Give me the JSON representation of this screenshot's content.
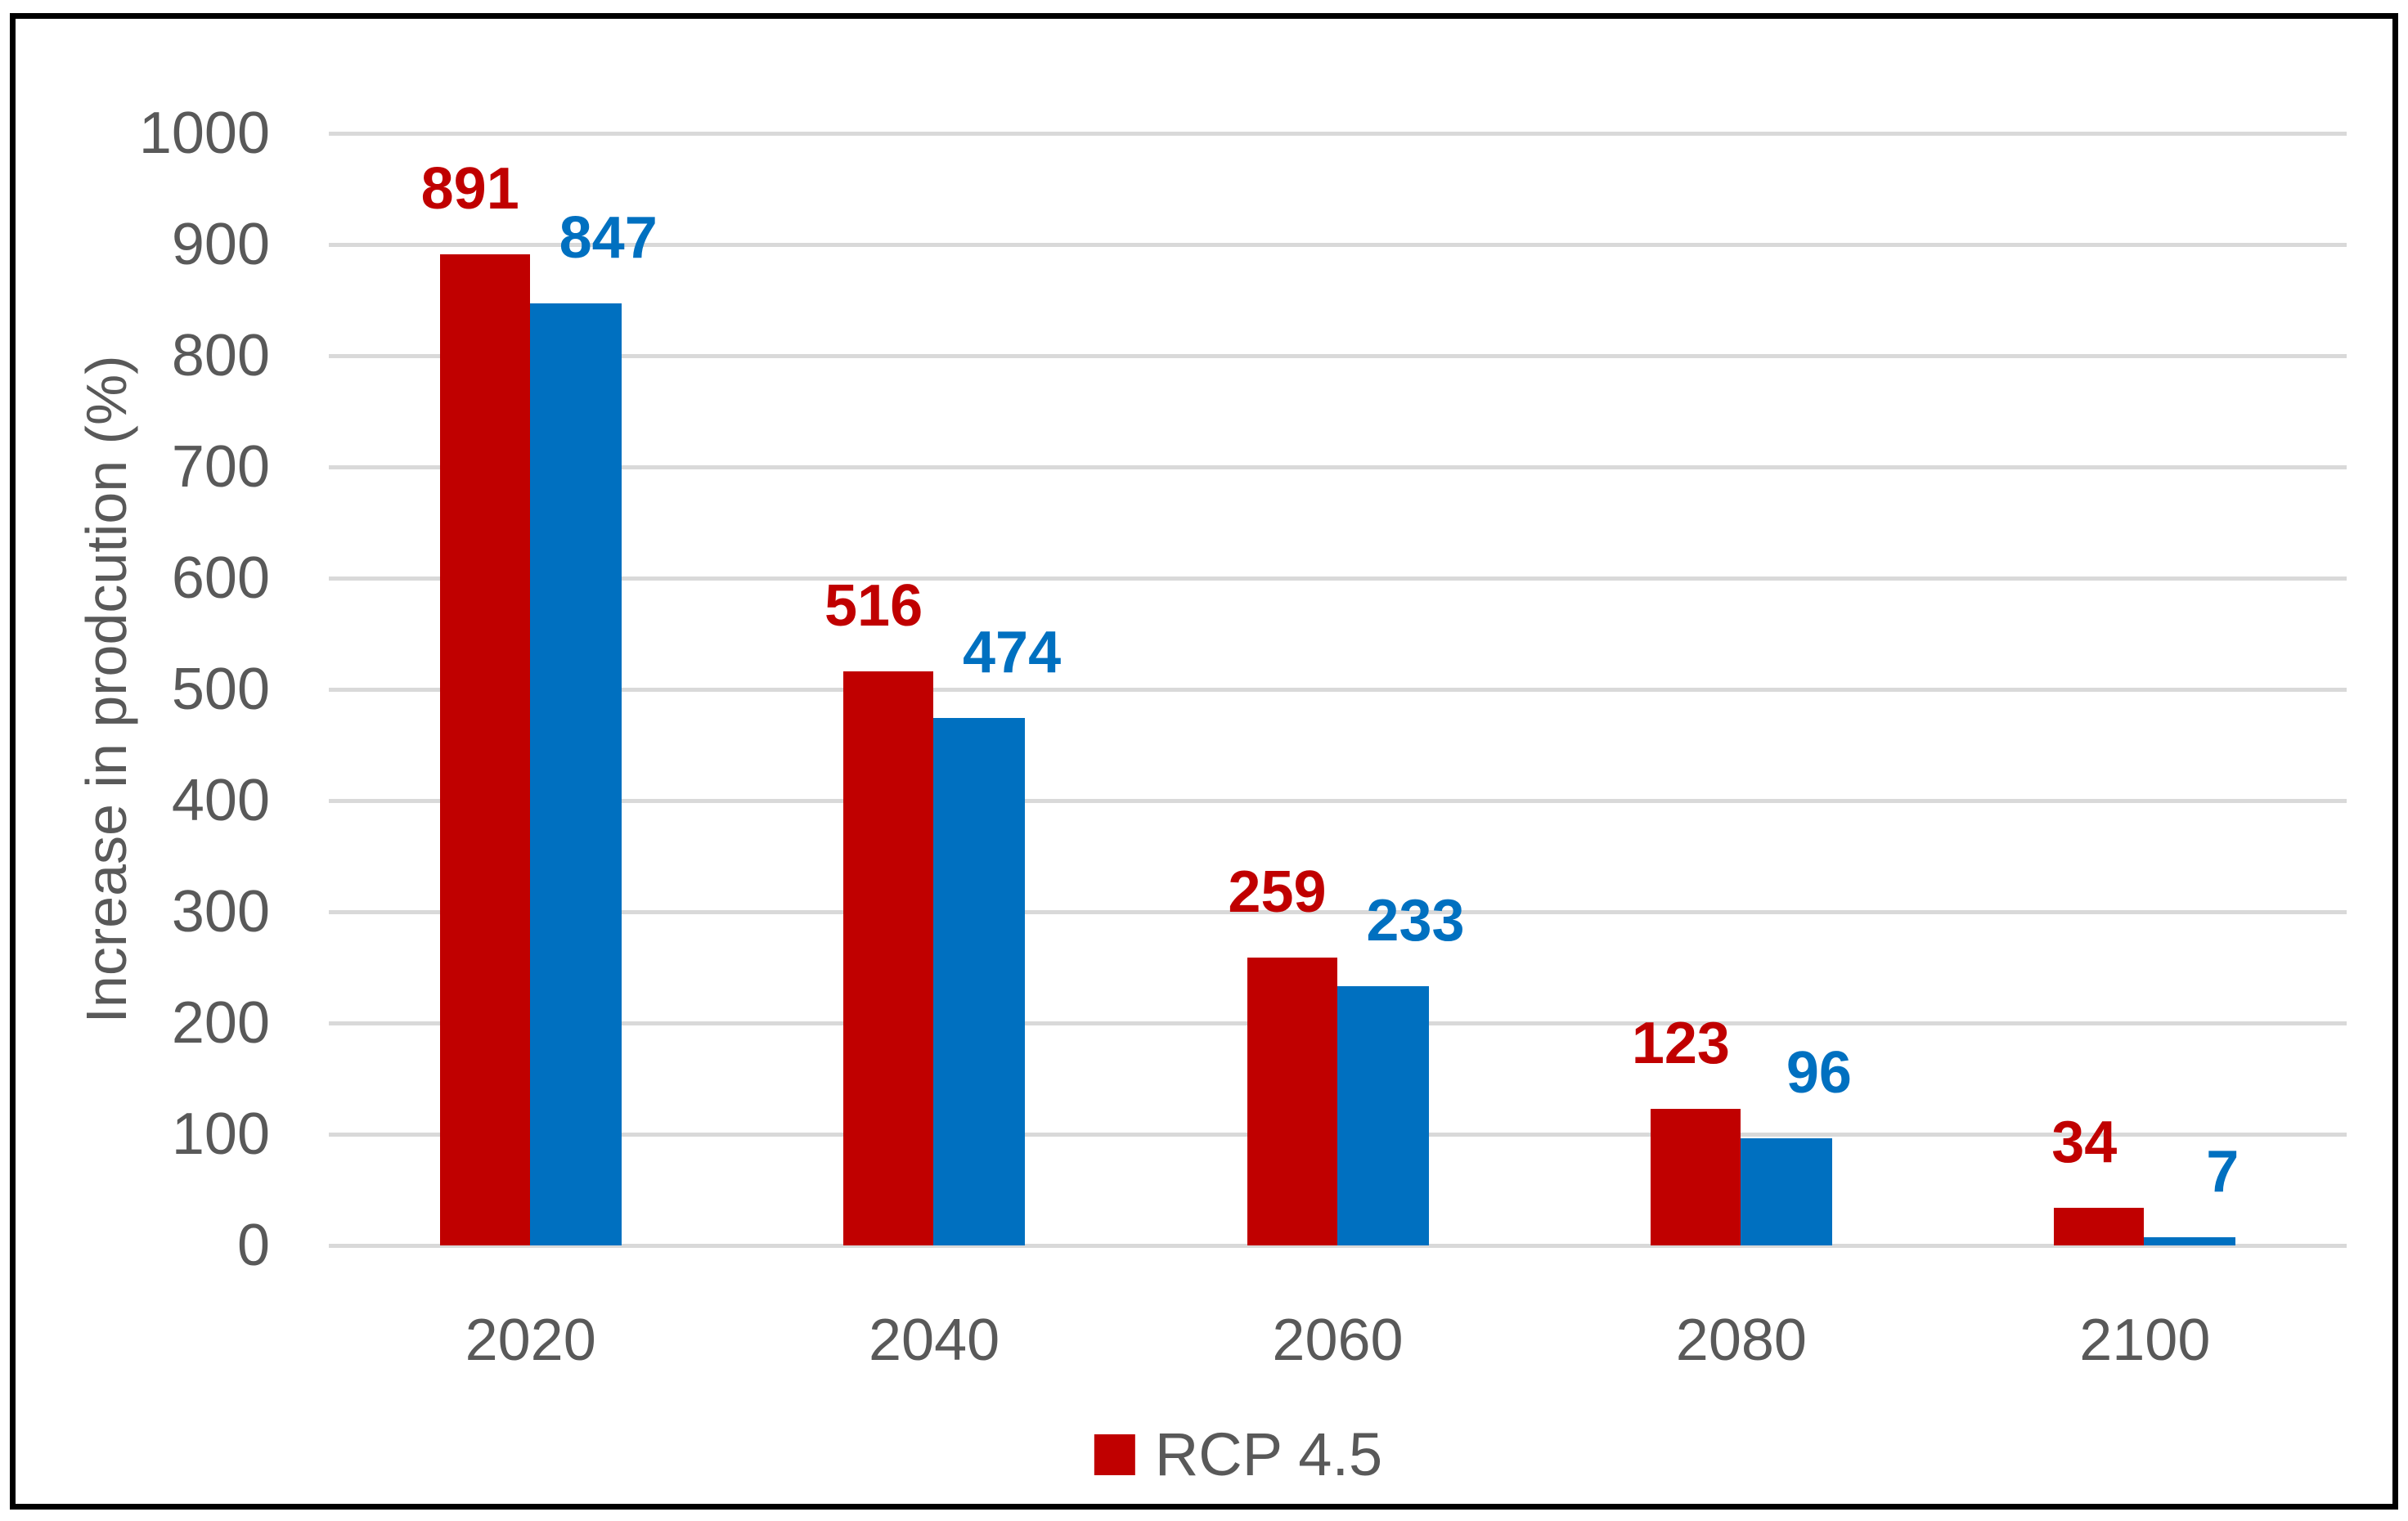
{
  "chart_data": {
    "type": "bar",
    "categories": [
      "2020",
      "2040",
      "2060",
      "2080",
      "2100"
    ],
    "series": [
      {
        "name": "RCP 4.5",
        "color": "#c00000",
        "values": [
          891,
          516,
          259,
          123,
          34
        ]
      },
      {
        "name": "",
        "color": "#0070c0",
        "values": [
          847,
          474,
          233,
          96,
          7
        ]
      }
    ],
    "data_labels": {
      "shown": true,
      "series_0": [
        "891",
        "516",
        "259",
        "123",
        "34"
      ],
      "series_1": [
        "847",
        "474",
        "233",
        "96",
        "7"
      ]
    },
    "title": "",
    "xlabel": "",
    "ylabel": "Increase in prodcution (%)",
    "ylim": [
      0,
      1000
    ],
    "yticks": [
      0,
      100,
      200,
      300,
      400,
      500,
      600,
      700,
      800,
      900,
      1000
    ],
    "grid": true,
    "legend": {
      "position": "bottom",
      "entries": [
        {
          "label": "RCP 4.5",
          "color": "#c00000"
        }
      ]
    }
  },
  "colors": {
    "series_red": "#c00000",
    "series_blue": "#0070c0",
    "axis_text": "#595959",
    "gridline": "#d9d9d9",
    "border": "#000000"
  }
}
